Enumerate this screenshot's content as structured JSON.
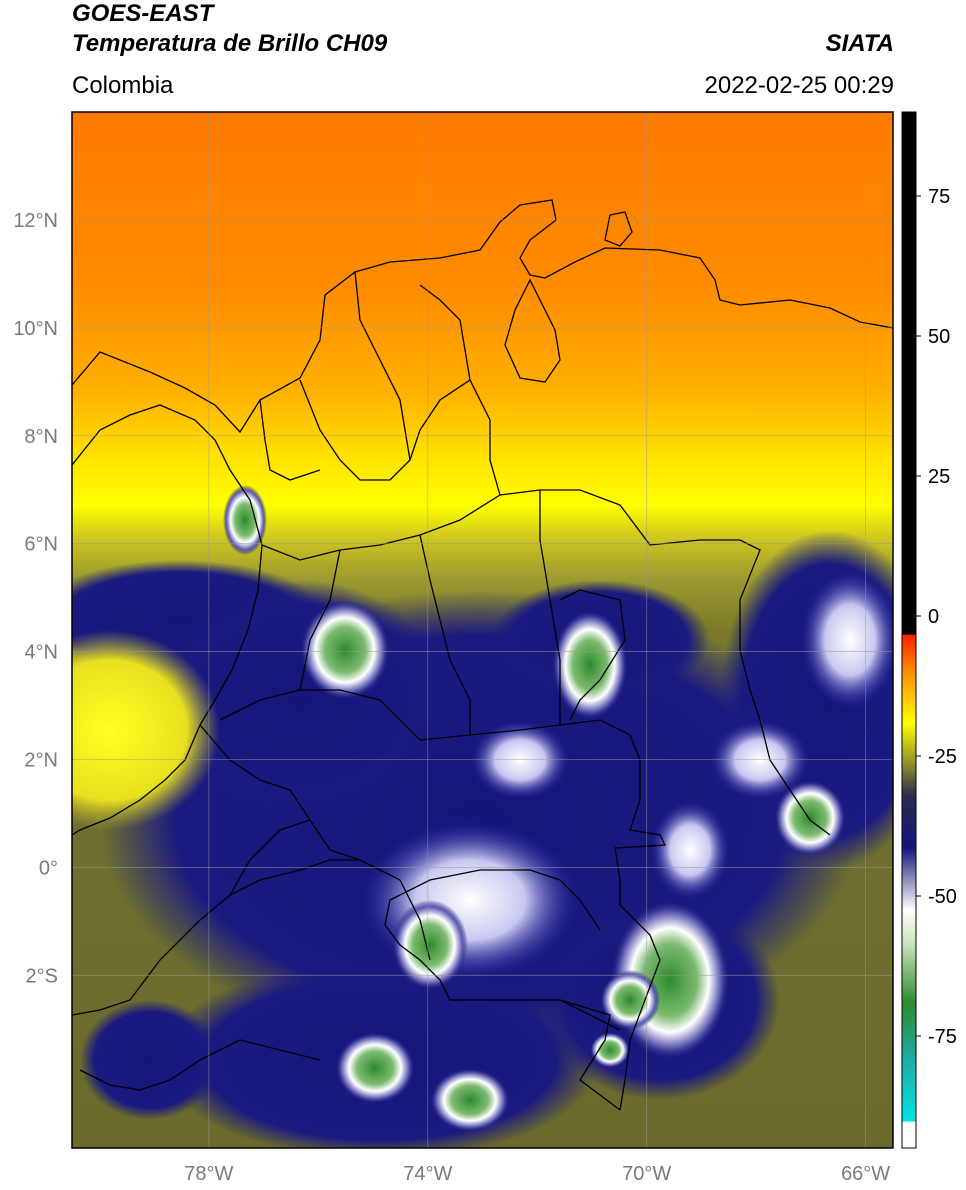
{
  "header": {
    "line1": "GOES-EAST",
    "line2": "Temperatura de Brillo CH09",
    "region": "Colombia",
    "brand": "SIATA",
    "datetime": "2022-02-25 00:29"
  },
  "axes": {
    "lat_labels": [
      "12°N",
      "10°N",
      "8°N",
      "6°N",
      "4°N",
      "2°N",
      "0°",
      "2°S"
    ],
    "lat_values": [
      12,
      10,
      8,
      6,
      4,
      2,
      0,
      -2
    ],
    "lon_labels": [
      "78°W",
      "74°W",
      "70°W",
      "66°W"
    ],
    "lon_values": [
      -78,
      -74,
      -70,
      -66
    ],
    "lon_range": [
      -80.5,
      -65.5
    ],
    "lat_range": [
      -5.2,
      14.0
    ],
    "grid": true
  },
  "colorbar": {
    "ticks": [
      "75",
      "50",
      "25",
      "0",
      "-25",
      "-50",
      "-75"
    ],
    "tick_values": [
      75,
      50,
      25,
      0,
      -25,
      -50,
      -75
    ],
    "range": [
      -95,
      90
    ]
  },
  "colors": {
    "orange": "#ff8c00",
    "yellow": "#ffff00",
    "olive": "#8c8a2a",
    "navy": "#15157a",
    "white": "#ffffff",
    "green": "#2e8b2e",
    "cyan": "#00e5e5",
    "red": "#ff2000",
    "black": "#000000"
  }
}
